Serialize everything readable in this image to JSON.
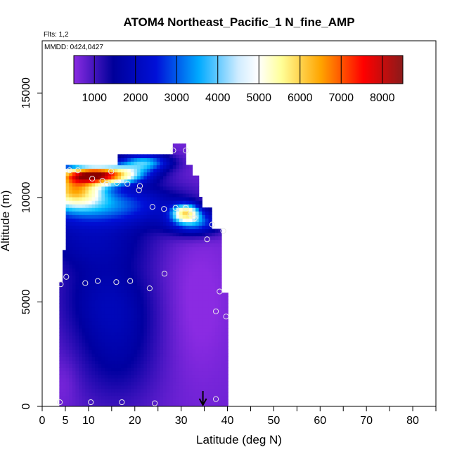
{
  "chart_data": {
    "type": "heatmap",
    "title": "ATOM4 Northeast_Pacific_1 N_fine_AMP",
    "subtitle_flights": "Flts: 1,2",
    "subtitle_dates": "MMDD: 0424,0427",
    "xlabel": "Latitude (deg N)",
    "ylabel": "Altitude (m)",
    "xlim": [
      0,
      85
    ],
    "ylim": [
      0,
      17500
    ],
    "x_ticks": [
      0,
      5,
      10,
      20,
      30,
      40,
      50,
      60,
      70,
      80
    ],
    "x_minor_ticks": [
      15,
      25,
      35,
      45,
      55,
      65,
      75,
      85
    ],
    "y_ticks": [
      0,
      5000,
      10000,
      15000
    ],
    "colorbar": {
      "range": [
        500,
        8500
      ],
      "ticks": [
        1000,
        2000,
        3000,
        4000,
        5000,
        6000,
        7000,
        8000
      ],
      "colors": [
        "#8a2be2",
        "#0000a0",
        "#0010d8",
        "#00bfff",
        "#ffffff",
        "#ffff99",
        "#ffa500",
        "#ff0000",
        "#8b0000"
      ]
    },
    "grid": false,
    "points": [
      {
        "x": 3.8,
        "y": 200
      },
      {
        "x": 10.5,
        "y": 200
      },
      {
        "x": 17.2,
        "y": 200
      },
      {
        "x": 24.3,
        "y": 150
      },
      {
        "x": 37.5,
        "y": 350
      },
      {
        "x": 4.0,
        "y": 5850
      },
      {
        "x": 5.2,
        "y": 6200
      },
      {
        "x": 9.3,
        "y": 5900
      },
      {
        "x": 12.0,
        "y": 6000
      },
      {
        "x": 16.0,
        "y": 5950
      },
      {
        "x": 19.0,
        "y": 6000
      },
      {
        "x": 23.2,
        "y": 5650
      },
      {
        "x": 26.4,
        "y": 6350
      },
      {
        "x": 37.5,
        "y": 4550
      },
      {
        "x": 38.3,
        "y": 5500
      },
      {
        "x": 39.7,
        "y": 4300
      },
      {
        "x": 35.6,
        "y": 8000
      },
      {
        "x": 36.7,
        "y": 8700
      },
      {
        "x": 39.1,
        "y": 8400
      },
      {
        "x": 23.8,
        "y": 9550
      },
      {
        "x": 26.3,
        "y": 9450
      },
      {
        "x": 28.8,
        "y": 9500
      },
      {
        "x": 31.0,
        "y": 9500
      },
      {
        "x": 32.0,
        "y": 9200
      },
      {
        "x": 32.9,
        "y": 9000
      },
      {
        "x": 5.9,
        "y": 11300
      },
      {
        "x": 7.7,
        "y": 11300
      },
      {
        "x": 14.9,
        "y": 11250
      },
      {
        "x": 10.8,
        "y": 10900
      },
      {
        "x": 13.0,
        "y": 10800
      },
      {
        "x": 14.0,
        "y": 10650
      },
      {
        "x": 16.1,
        "y": 10700
      },
      {
        "x": 18.4,
        "y": 10650
      },
      {
        "x": 21.1,
        "y": 10550
      },
      {
        "x": 20.9,
        "y": 10350
      },
      {
        "x": 28.3,
        "y": 12250
      },
      {
        "x": 31.0,
        "y": 12250
      }
    ],
    "flight_marker": {
      "x": 34.7,
      "y": 300
    }
  }
}
